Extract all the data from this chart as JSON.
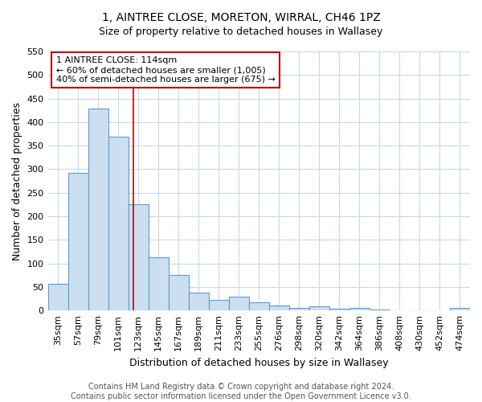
{
  "title": "1, AINTREE CLOSE, MORETON, WIRRAL, CH46 1PZ",
  "subtitle": "Size of property relative to detached houses in Wallasey",
  "xlabel": "Distribution of detached houses by size in Wallasey",
  "ylabel": "Number of detached properties",
  "categories": [
    "35sqm",
    "57sqm",
    "79sqm",
    "101sqm",
    "123sqm",
    "145sqm",
    "167sqm",
    "189sqm",
    "211sqm",
    "233sqm",
    "255sqm",
    "276sqm",
    "298sqm",
    "320sqm",
    "342sqm",
    "364sqm",
    "386sqm",
    "408sqm",
    "430sqm",
    "452sqm",
    "474sqm"
  ],
  "values": [
    57,
    293,
    428,
    369,
    225,
    113,
    75,
    38,
    22,
    30,
    17,
    10,
    5,
    8,
    3,
    5,
    2,
    1,
    1,
    1,
    5
  ],
  "bar_color": "#ccdff0",
  "bar_edge_color": "#5b9bd5",
  "vline_x_index": 3.75,
  "annotation_title": "1 AINTREE CLOSE: 114sqm",
  "annotation_line1": "← 60% of detached houses are smaller (1,005)",
  "annotation_line2": "40% of semi-detached houses are larger (675) →",
  "annotation_color": "#c00000",
  "annotation_box_color": "#ffffff",
  "vline_color": "#c00000",
  "ylim_max": 550,
  "ytick_step": 50,
  "footer_line1": "Contains HM Land Registry data © Crown copyright and database right 2024.",
  "footer_line2": "Contains public sector information licensed under the Open Government Licence v3.0.",
  "bg_color": "#ffffff",
  "grid_color": "#c8d8e8",
  "title_fontsize": 10,
  "axis_label_fontsize": 9,
  "tick_fontsize": 8,
  "annotation_fontsize": 8,
  "footer_fontsize": 7
}
